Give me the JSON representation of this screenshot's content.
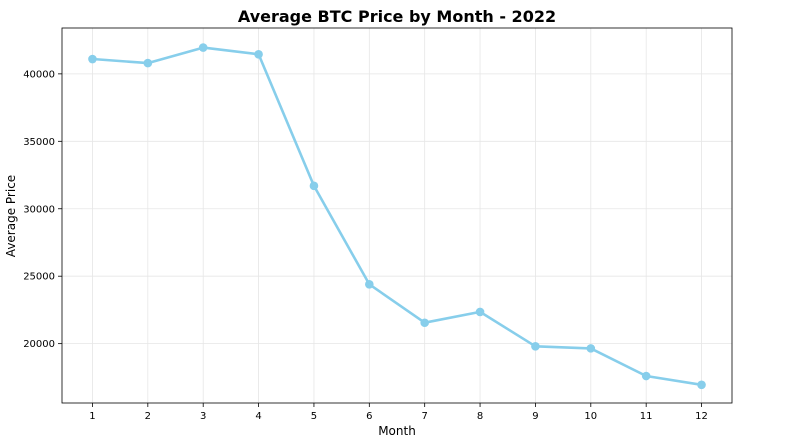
{
  "chart_data": {
    "type": "line",
    "title": "Average BTC Price by Month - 2022",
    "xlabel": "Month",
    "ylabel": "Average Price",
    "x": [
      1,
      2,
      3,
      4,
      5,
      6,
      7,
      8,
      9,
      10,
      11,
      12
    ],
    "series": [
      {
        "values": [
          41100,
          40800,
          41950,
          41450,
          31700,
          24400,
          21550,
          22350,
          19800,
          19650,
          17600,
          16950
        ]
      }
    ],
    "xlim": [
      0.45,
      12.55
    ],
    "ylim": [
      15600,
      43400
    ],
    "yticks": [
      20000,
      25000,
      30000,
      35000,
      40000
    ],
    "grid": true,
    "line_color": "#87CEEB"
  }
}
